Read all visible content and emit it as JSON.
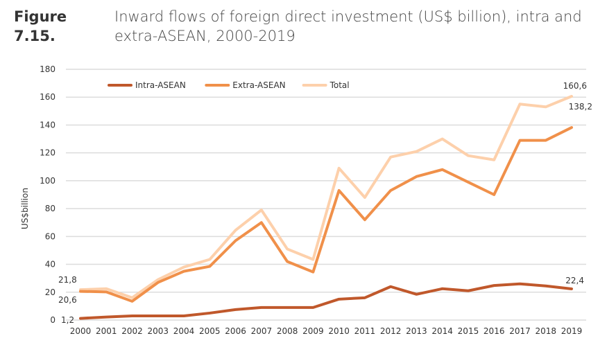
{
  "figure": {
    "number": "Figure 7.15.",
    "title": "Inward flows of foreign direct investment (US$ billion), intra and extra-ASEAN, 2000-2019"
  },
  "chart_data": {
    "type": "line",
    "title": "Inward flows of foreign direct investment (US$ billion), intra and extra-ASEAN, 2000-2019",
    "xlabel": "",
    "ylabel": "US$billion",
    "ylim": [
      0,
      180
    ],
    "yticks": [
      0,
      20,
      40,
      60,
      80,
      100,
      120,
      140,
      160,
      180
    ],
    "grid": true,
    "legend_placement": "top-left",
    "categories": [
      "2000",
      "2001",
      "2002",
      "2003",
      "2004",
      "2005",
      "2006",
      "2007",
      "2008",
      "2009",
      "2010",
      "2011",
      "2012",
      "2013",
      "2014",
      "2015",
      "2016",
      "2017",
      "2018",
      "2019"
    ],
    "series": [
      {
        "name": "Intra-ASEAN",
        "color": "#c0582b",
        "values": [
          1.2,
          2.2,
          3,
          3,
          3,
          5,
          7.5,
          9,
          9,
          9,
          15,
          16,
          24,
          18.5,
          22.5,
          21,
          24.8,
          26,
          24.5,
          22.4
        ]
      },
      {
        "name": "Extra-ASEAN",
        "color": "#f0904a",
        "values": [
          20.6,
          20.2,
          13.5,
          27,
          35,
          38.5,
          57,
          70,
          42,
          34.5,
          93,
          72,
          93,
          103,
          108,
          99,
          90,
          129,
          129,
          138.2
        ]
      },
      {
        "name": "Total",
        "color": "#fdd0ab",
        "values": [
          21.8,
          22.5,
          16,
          29,
          38,
          43.5,
          64.5,
          79,
          51,
          43.5,
          109,
          88,
          117,
          121,
          130,
          118,
          115,
          155,
          153,
          160.6
        ]
      }
    ],
    "annotations": [
      {
        "text": "1,2",
        "series": "Intra-ASEAN",
        "year": "2000"
      },
      {
        "text": "20,6",
        "series": "Extra-ASEAN",
        "year": "2000"
      },
      {
        "text": "21,8",
        "series": "Total",
        "year": "2000"
      },
      {
        "text": "22,4",
        "series": "Intra-ASEAN",
        "year": "2019"
      },
      {
        "text": "138,2",
        "series": "Extra-ASEAN",
        "year": "2019"
      },
      {
        "text": "160,6",
        "series": "Total",
        "year": "2019"
      }
    ]
  }
}
